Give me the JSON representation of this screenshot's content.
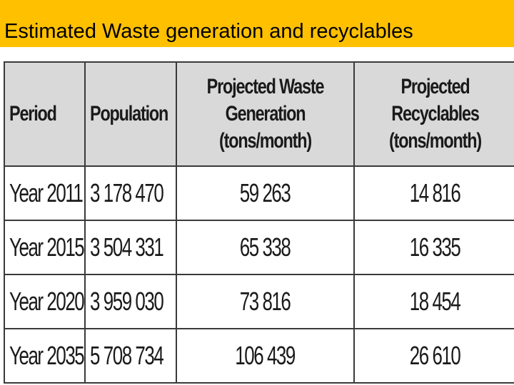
{
  "title": "Estimated Waste generation and recyclables",
  "colors": {
    "title_bar": "#ffc000",
    "header_bg": "#d9d9d9",
    "border": "#3a3a3a"
  },
  "table": {
    "headers": {
      "period": "Period",
      "population": "Population",
      "waste_line1": "Projected Waste",
      "waste_line2": "Generation (tons/month)",
      "recyclables_line1": "Projected Recyclables",
      "recyclables_line2": "(tons/month)"
    },
    "rows": [
      {
        "period": "Year 2011",
        "population": "3 178 470",
        "waste": "59 263",
        "recyclables": "14 816"
      },
      {
        "period": "Year 2015",
        "population": "3 504 331",
        "waste": "65 338",
        "recyclables": "16 335"
      },
      {
        "period": "Year 2020",
        "population": "3 959 030",
        "waste": "73 816",
        "recyclables": "18 454"
      },
      {
        "period": "Year 2035",
        "population": "5 708 734",
        "waste": "106 439",
        "recyclables": "26 610"
      }
    ]
  }
}
